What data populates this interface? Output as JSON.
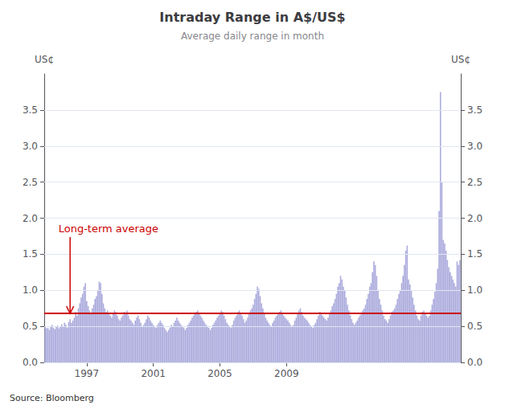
{
  "chart_data": {
    "type": "bar",
    "title": "Intraday Range in A$/US$",
    "subtitle": "Average daily range in month",
    "ylabel": "US¢",
    "y2label": "US¢",
    "source": "Source: Bloomberg",
    "color": "#aaaadd",
    "grid": true,
    "xlim": [
      1994.4463,
      2019.4703
    ],
    "xticks": [
      1997,
      2001,
      2005,
      2009
    ],
    "ylim": [
      0,
      4
    ],
    "yticks": [
      {
        "value": 0,
        "label": "0.0"
      },
      0.5,
      {
        "value": 1,
        "label": "1.0"
      },
      1.5,
      {
        "value": 2,
        "label": "2.0"
      },
      2.5,
      {
        "value": 3,
        "label": "3.0"
      },
      3.5
    ],
    "y2lim": [
      0,
      4
    ],
    "y2ticks": [
      {
        "value": 0,
        "label": "0.0"
      },
      0.5,
      {
        "value": 1,
        "label": "1.0"
      },
      1.5,
      {
        "value": 2,
        "label": "2.0"
      },
      2.5,
      {
        "value": 3,
        "label": "3.0"
      },
      3.5
    ],
    "hlines": [
      {
        "value": 0.68,
        "color": "#cc0000"
      }
    ],
    "annotations": [
      {
        "text": "Long-term average",
        "x": 1995.3,
        "y": 1.85,
        "arrow_x": 1996.0,
        "arrow_y": 0.68,
        "color": "#cc0000"
      }
    ],
    "x": [
      1994.5,
      1994.5833,
      1994.6667,
      1994.75,
      1994.8333,
      1994.9167,
      1995,
      1995.0833,
      1995.1667,
      1995.25,
      1995.3333,
      1995.4167,
      1995.5,
      1995.5833,
      1995.6667,
      1995.75,
      1995.8333,
      1995.9167,
      1996,
      1996.0833,
      1996.1667,
      1996.25,
      1996.3333,
      1996.4167,
      1996.5,
      1996.5833,
      1996.6667,
      1996.75,
      1996.8333,
      1996.9167,
      1997,
      1997.0833,
      1997.1667,
      1997.25,
      1997.3333,
      1997.4167,
      1997.5,
      1997.5833,
      1997.6667,
      1997.75,
      1997.8333,
      1997.9167,
      1998,
      1998.0833,
      1998.1667,
      1998.25,
      1998.3333,
      1998.4167,
      1998.5,
      1998.5833,
      1998.6667,
      1998.75,
      1998.8333,
      1998.9167,
      1999,
      1999.0833,
      1999.1667,
      1999.25,
      1999.3333,
      1999.4167,
      1999.5,
      1999.5833,
      1999.6667,
      1999.75,
      1999.8333,
      1999.9167,
      2000,
      2000.0833,
      2000.1667,
      2000.25,
      2000.3333,
      2000.4167,
      2000.5,
      2000.5833,
      2000.6667,
      2000.75,
      2000.8333,
      2000.9167,
      2001,
      2001.0833,
      2001.1667,
      2001.25,
      2001.3333,
      2001.4167,
      2001.5,
      2001.5833,
      2001.6667,
      2001.75,
      2001.8333,
      2001.9167,
      2002,
      2002.0833,
      2002.1667,
      2002.25,
      2002.3333,
      2002.4167,
      2002.5,
      2002.5833,
      2002.6667,
      2002.75,
      2002.8333,
      2002.9167,
      2003,
      2003.0833,
      2003.1667,
      2003.25,
      2003.3333,
      2003.4167,
      2003.5,
      2003.5833,
      2003.6667,
      2003.75,
      2003.8333,
      2003.9167,
      2004,
      2004.0833,
      2004.1667,
      2004.25,
      2004.3333,
      2004.4167,
      2004.5,
      2004.5833,
      2004.6667,
      2004.75,
      2004.8333,
      2004.9167,
      2005,
      2005.0833,
      2005.1667,
      2005.25,
      2005.3333,
      2005.4167,
      2005.5,
      2005.5833,
      2005.6667,
      2005.75,
      2005.8333,
      2005.9167,
      2006,
      2006.0833,
      2006.1667,
      2006.25,
      2006.3333,
      2006.4167,
      2006.5,
      2006.5833,
      2006.6667,
      2006.75,
      2006.8333,
      2006.9167,
      2007,
      2007.0833,
      2007.1667,
      2007.25,
      2007.3333,
      2007.4167,
      2007.5,
      2007.5833,
      2007.6667,
      2007.75,
      2007.8333,
      2007.9167,
      2008,
      2008.0833,
      2008.1667,
      2008.25,
      2008.3333,
      2008.4167,
      2008.5,
      2008.5833,
      2008.6667,
      2008.75,
      2008.8333,
      2008.9167,
      2009,
      2009.0833,
      2009.1667,
      2009.25,
      2009.3333,
      2009.4167,
      2009.5,
      2009.5833,
      2009.6667,
      2009.75,
      2009.8333,
      2009.9167,
      2010,
      2010.0833,
      2010.1667,
      2010.25,
      2010.3333,
      2010.4167,
      2010.5,
      2010.5833,
      2010.6667,
      2010.75,
      2010.8333,
      2010.9167,
      2011,
      2011.0833,
      2011.1667,
      2011.25,
      2011.3333,
      2011.4167,
      2011.5,
      2011.5833,
      2011.6667,
      2011.75,
      2011.8333,
      2011.9167,
      2012,
      2012.0833,
      2012.1667,
      2012.25,
      2012.3333,
      2012.4167,
      2012.5,
      2012.5833,
      2012.6667,
      2012.75,
      2012.8333,
      2012.9167,
      2013,
      2013.0833,
      2013.1667,
      2013.25,
      2013.3333,
      2013.4167,
      2013.5,
      2013.5833,
      2013.6667,
      2013.75,
      2013.8333,
      2013.9167,
      2014,
      2014.0833,
      2014.1667,
      2014.25,
      2014.3333,
      2014.4167,
      2014.5,
      2014.5833,
      2014.6667,
      2014.75,
      2014.8333,
      2014.9167,
      2015,
      2015.0833,
      2015.1667,
      2015.25,
      2015.3333,
      2015.4167,
      2015.5,
      2015.5833,
      2015.6667,
      2015.75,
      2015.8333,
      2015.9167,
      2016,
      2016.0833,
      2016.1667,
      2016.25,
      2016.3333,
      2016.4167,
      2016.5,
      2016.5833,
      2016.6667,
      2016.75,
      2016.8333,
      2016.9167,
      2017,
      2017.0833,
      2017.1667,
      2017.25,
      2017.3333,
      2017.4167,
      2017.5,
      2017.5833,
      2017.6667,
      2017.75,
      2017.8333,
      2017.9167,
      2018,
      2018.0833,
      2018.1667,
      2018.25,
      2018.3333,
      2018.4167,
      2018.5,
      2018.5833,
      2018.6667,
      2018.75,
      2018.8333,
      2018.9167,
      2019,
      2019.0833,
      2019.1667,
      2019.25,
      2019.3333,
      2019.4167
    ],
    "values": [
      0.5,
      0.47,
      0.48,
      0.45,
      0.5,
      0.52,
      0.48,
      0.46,
      0.49,
      0.51,
      0.47,
      0.5,
      0.53,
      0.49,
      0.55,
      0.52,
      0.48,
      0.56,
      0.6,
      0.55,
      0.58,
      0.62,
      0.7,
      0.65,
      0.75,
      0.82,
      0.9,
      0.95,
      1.05,
      1.1,
      0.85,
      0.78,
      0.72,
      0.68,
      0.75,
      0.8,
      0.88,
      0.92,
      1.0,
      1.12,
      1.1,
      0.95,
      0.82,
      0.75,
      0.7,
      0.72,
      0.68,
      0.65,
      0.62,
      0.68,
      0.72,
      0.7,
      0.65,
      0.6,
      0.58,
      0.62,
      0.65,
      0.7,
      0.68,
      0.72,
      0.65,
      0.6,
      0.58,
      0.55,
      0.52,
      0.58,
      0.62,
      0.65,
      0.6,
      0.55,
      0.5,
      0.52,
      0.55,
      0.6,
      0.65,
      0.62,
      0.58,
      0.55,
      0.52,
      0.5,
      0.48,
      0.52,
      0.55,
      0.58,
      0.55,
      0.52,
      0.48,
      0.45,
      0.42,
      0.45,
      0.48,
      0.52,
      0.5,
      0.55,
      0.58,
      0.62,
      0.58,
      0.55,
      0.52,
      0.5,
      0.48,
      0.45,
      0.48,
      0.52,
      0.55,
      0.58,
      0.62,
      0.65,
      0.68,
      0.7,
      0.72,
      0.68,
      0.65,
      0.62,
      0.58,
      0.55,
      0.52,
      0.5,
      0.48,
      0.45,
      0.48,
      0.52,
      0.55,
      0.58,
      0.62,
      0.65,
      0.68,
      0.72,
      0.7,
      0.65,
      0.6,
      0.55,
      0.52,
      0.5,
      0.48,
      0.52,
      0.58,
      0.62,
      0.65,
      0.7,
      0.72,
      0.68,
      0.65,
      0.6,
      0.55,
      0.58,
      0.62,
      0.68,
      0.72,
      0.75,
      0.8,
      0.88,
      0.95,
      1.05,
      1.02,
      0.92,
      0.82,
      0.75,
      0.68,
      0.62,
      0.58,
      0.55,
      0.52,
      0.5,
      0.55,
      0.58,
      0.62,
      0.65,
      0.68,
      0.7,
      0.72,
      0.68,
      0.65,
      0.62,
      0.6,
      0.58,
      0.55,
      0.52,
      0.5,
      0.52,
      0.58,
      0.62,
      0.68,
      0.72,
      0.75,
      0.7,
      0.65,
      0.62,
      0.6,
      0.58,
      0.55,
      0.52,
      0.5,
      0.48,
      0.52,
      0.55,
      0.6,
      0.65,
      0.7,
      0.68,
      0.65,
      0.62,
      0.6,
      0.58,
      0.62,
      0.68,
      0.72,
      0.78,
      0.82,
      0.88,
      0.95,
      1.05,
      1.1,
      1.2,
      1.15,
      1.05,
      1.0,
      0.9,
      0.8,
      0.72,
      0.65,
      0.6,
      0.55,
      0.52,
      0.55,
      0.58,
      0.62,
      0.65,
      0.68,
      0.72,
      0.75,
      0.8,
      0.88,
      0.95,
      1.05,
      1.1,
      1.25,
      1.4,
      1.35,
      1.2,
      1.0,
      0.88,
      0.8,
      0.72,
      0.65,
      0.6,
      0.58,
      0.55,
      0.6,
      0.65,
      0.7,
      0.72,
      0.75,
      0.8,
      0.88,
      0.95,
      1.0,
      1.1,
      1.2,
      1.35,
      1.55,
      1.62,
      1.15,
      1.08,
      1.0,
      0.9,
      0.8,
      0.72,
      0.65,
      0.6,
      0.58,
      0.65,
      0.7,
      0.72,
      0.68,
      0.65,
      0.62,
      0.65,
      0.72,
      0.8,
      0.88,
      0.98,
      1.1,
      1.3,
      2.1,
      3.75,
      2.5,
      1.7,
      1.65,
      1.55,
      1.42,
      1.32,
      1.25,
      1.2,
      1.15,
      1.1,
      1.05,
      1.4,
      1.35,
      1.42
    ]
  }
}
